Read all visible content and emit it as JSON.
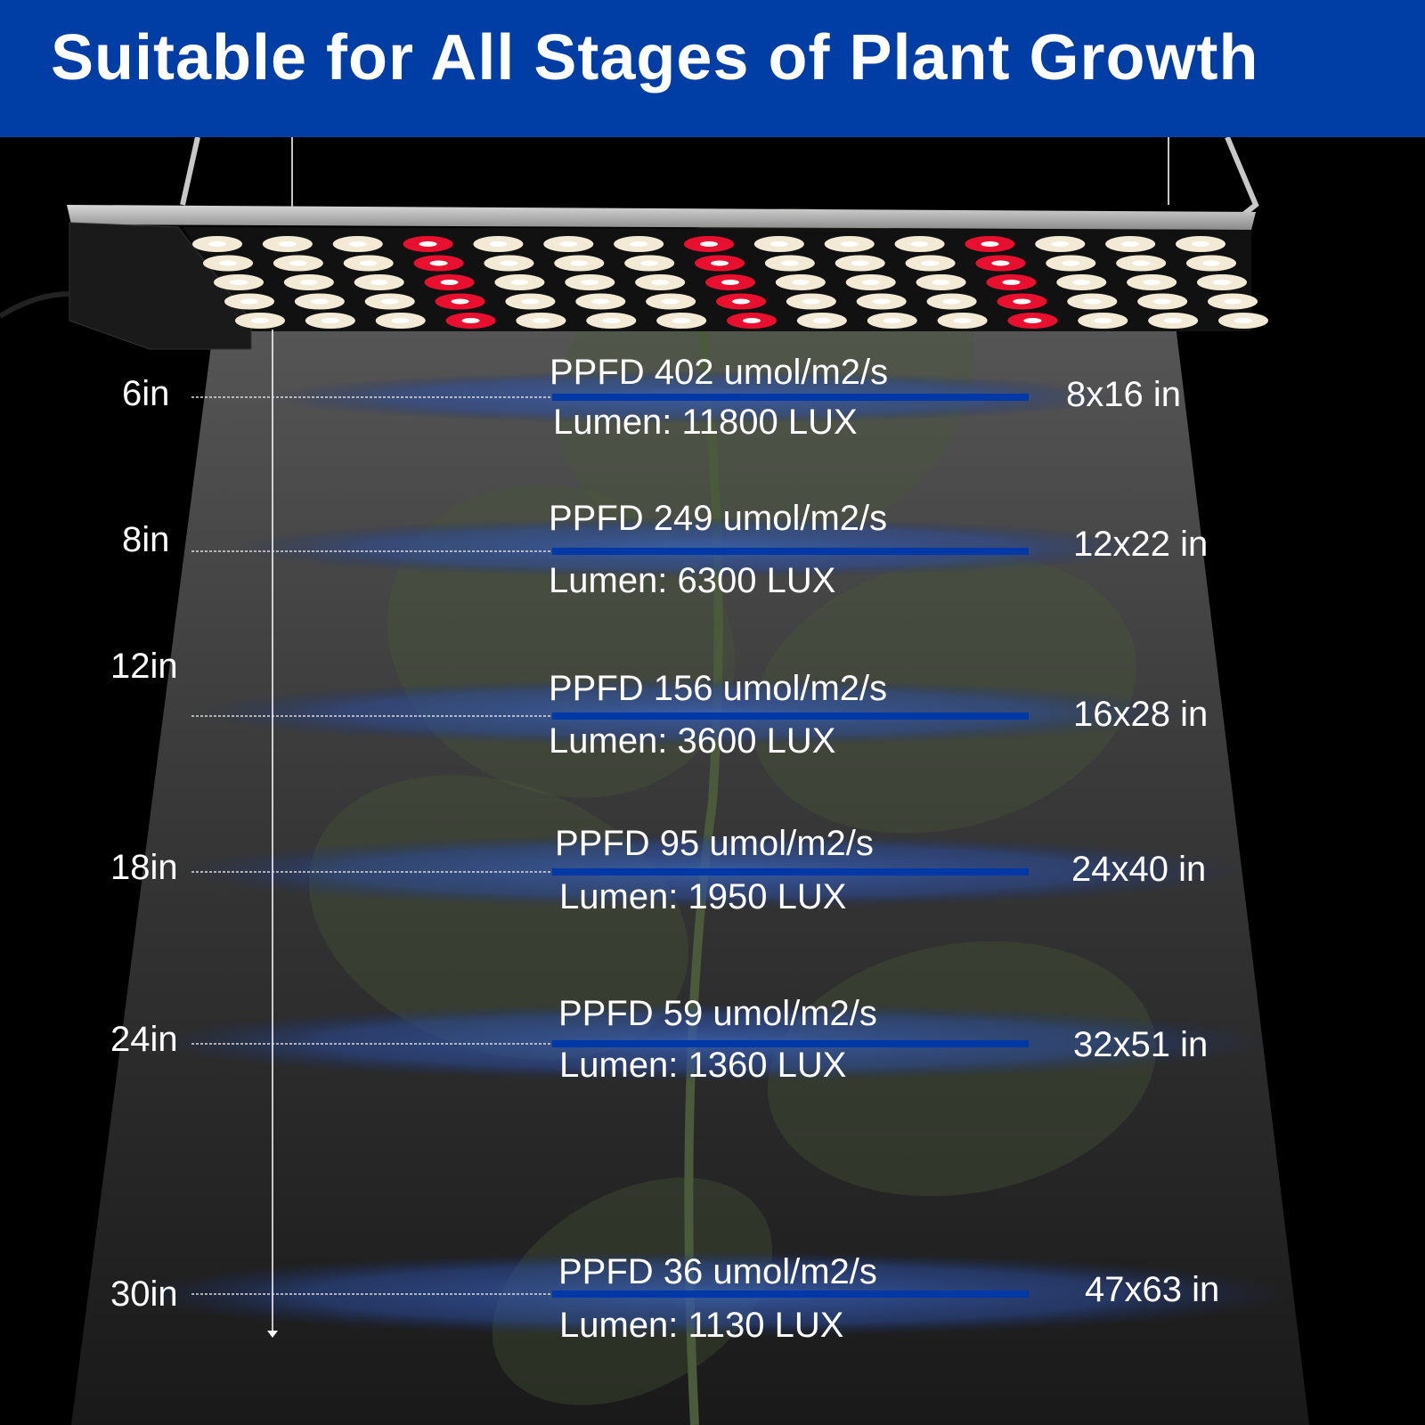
{
  "header": {
    "title": "Suitable for All Stages of Plant Growth"
  },
  "colors": {
    "header_bg": "#003da5",
    "beam_line": "#0038a8",
    "led_white": "#f3ead5",
    "led_red": "#e8102e"
  },
  "led_panel": {
    "columns": 15,
    "rows": 5,
    "red_columns": [
      3,
      7,
      11
    ]
  },
  "levels": [
    {
      "distance": "6in",
      "ppfd": "PPFD 402  umol/m2/s",
      "lumen": "Lumen: 11800 LUX",
      "coverage": "8x16 in"
    },
    {
      "distance": "8in",
      "ppfd": "PPFD 249  umol/m2/s",
      "lumen": "Lumen: 6300 LUX",
      "coverage": "12x22 in"
    },
    {
      "distance": "12in",
      "ppfd": "PPFD 156  umol/m2/s",
      "lumen": "Lumen: 3600 LUX",
      "coverage": "16x28 in"
    },
    {
      "distance": "18in",
      "ppfd": "PPFD 95  umol/m2/s",
      "lumen": "Lumen: 1950 LUX",
      "coverage": "24x40 in"
    },
    {
      "distance": "24in",
      "ppfd": "PPFD 59  umol/m2/s",
      "lumen": "Lumen: 1360 LUX",
      "coverage": "32x51 in"
    },
    {
      "distance": "30in",
      "ppfd": "PPFD 36  umol/m2/s",
      "lumen": "Lumen: 1130 LUX",
      "coverage": "47x63 in"
    }
  ]
}
